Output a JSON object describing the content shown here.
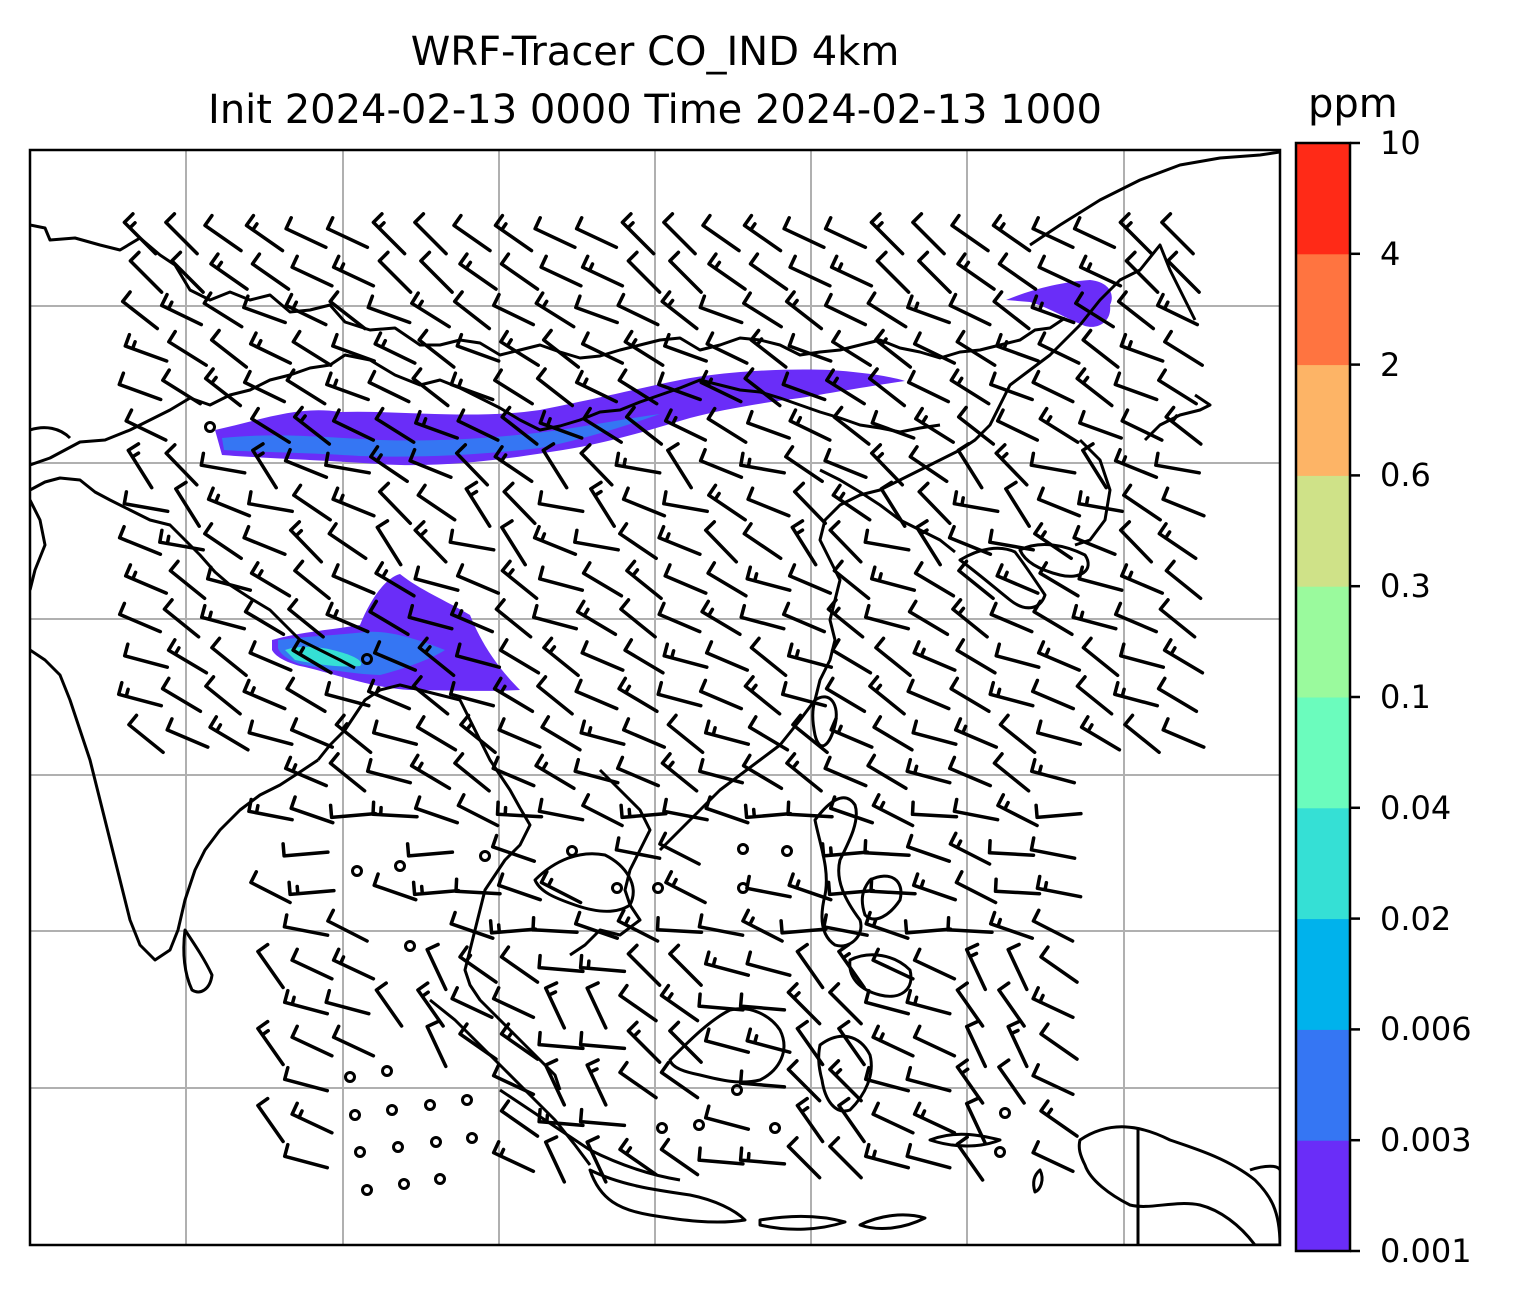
{
  "title": {
    "line1": "WRF-Tracer CO_IND 4km",
    "line2": "Init 2024-02-13 0000 Time 2024-02-13 1000"
  },
  "colorbar": {
    "unit": "ppm",
    "ticks": [
      "0.001",
      "0.003",
      "0.006",
      "0.02",
      "0.04",
      "0.1",
      "0.3",
      "0.6",
      "2",
      "4",
      "10"
    ],
    "colors": [
      "#6a2df8",
      "#3576f3",
      "#00b2ec",
      "#35e0d5",
      "#6bfcbd",
      "#9afa9d",
      "#cfe288",
      "#fdb466",
      "#ff7440",
      "#ff2a17"
    ]
  },
  "map": {
    "region": "South & East Asia",
    "gridlines": true,
    "features": [
      "coastlines",
      "wind-barbs",
      "tracer-plumes",
      "calm-circles"
    ]
  }
}
